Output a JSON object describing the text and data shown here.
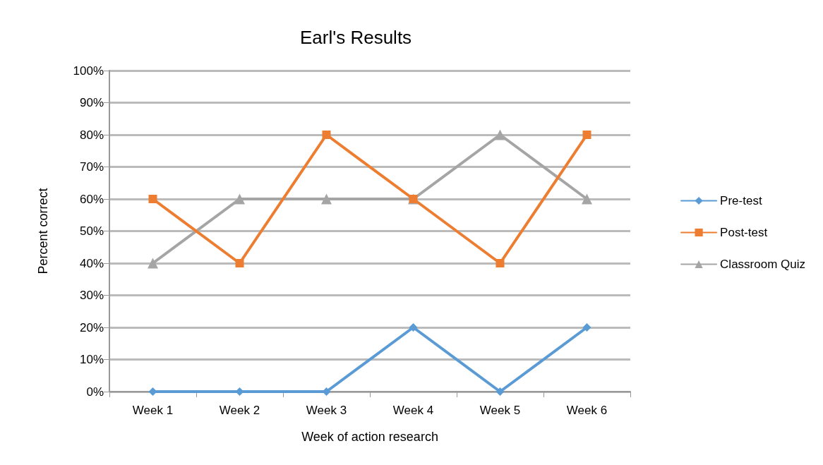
{
  "chart_data": {
    "type": "line",
    "title": "Earl's Results",
    "xlabel": "Week of action research",
    "ylabel": "Percent correct",
    "categories": [
      "Week 1",
      "Week 2",
      "Week 3",
      "Week 4",
      "Week 5",
      "Week 6"
    ],
    "series": [
      {
        "name": "Pre-test",
        "color": "#5b9bd5",
        "marker": "diamond",
        "values": [
          0,
          0,
          0,
          20,
          0,
          20
        ]
      },
      {
        "name": "Post-test",
        "color": "#ed7d31",
        "marker": "square",
        "values": [
          60,
          40,
          80,
          60,
          40,
          80
        ]
      },
      {
        "name": "Classroom Quiz",
        "color": "#a5a5a5",
        "marker": "triangle",
        "values": [
          40,
          60,
          60,
          60,
          80,
          60
        ]
      }
    ],
    "ylim": [
      0,
      100
    ],
    "yticks": [
      {
        "value": 0,
        "label": "0%"
      },
      {
        "value": 10,
        "label": "10%"
      },
      {
        "value": 20,
        "label": "20%"
      },
      {
        "value": 30,
        "label": "30%"
      },
      {
        "value": 40,
        "label": "40%"
      },
      {
        "value": 50,
        "label": "50%"
      },
      {
        "value": 60,
        "label": "60%"
      },
      {
        "value": 70,
        "label": "70%"
      },
      {
        "value": 80,
        "label": "80%"
      },
      {
        "value": 90,
        "label": "90%"
      },
      {
        "value": 100,
        "label": "100%"
      }
    ],
    "grid": "y",
    "legend": "right"
  }
}
